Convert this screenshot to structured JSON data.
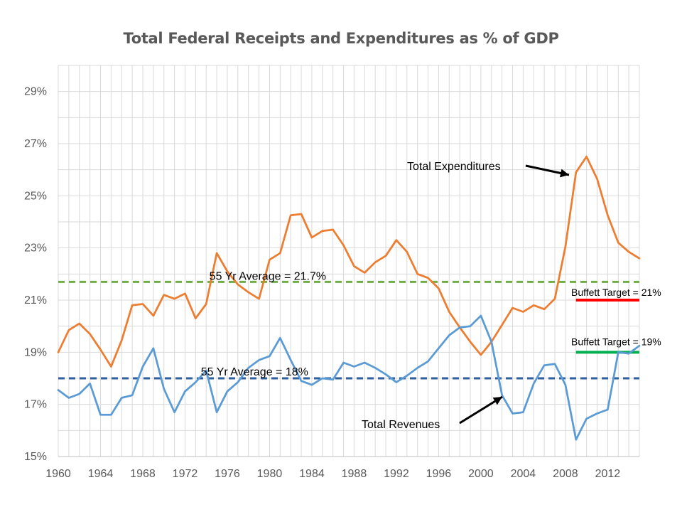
{
  "chart_data": {
    "type": "line",
    "title": "Total Federal Receipts and Expenditures as % of GDP",
    "xlabel": "",
    "ylabel": "",
    "xlim": [
      1960,
      2015
    ],
    "ylim": [
      15,
      30
    ],
    "grid": true,
    "x_ticks": [
      "1960",
      "1964",
      "1968",
      "1972",
      "1976",
      "1980",
      "1984",
      "1988",
      "1992",
      "1996",
      "2000",
      "2004",
      "2008",
      "2012"
    ],
    "y_ticks": [
      "15%",
      "17%",
      "19%",
      "21%",
      "23%",
      "25%",
      "27%",
      "29%"
    ],
    "x": [
      1960,
      1961,
      1962,
      1963,
      1964,
      1965,
      1966,
      1967,
      1968,
      1969,
      1970,
      1971,
      1972,
      1973,
      1974,
      1975,
      1976,
      1977,
      1978,
      1979,
      1980,
      1981,
      1982,
      1983,
      1984,
      1985,
      1986,
      1987,
      1988,
      1989,
      1990,
      1991,
      1992,
      1993,
      1994,
      1995,
      1996,
      1997,
      1998,
      1999,
      2000,
      2001,
      2002,
      2003,
      2004,
      2005,
      2006,
      2007,
      2008,
      2009,
      2010,
      2011,
      2012,
      2013,
      2014,
      2015
    ],
    "series": [
      {
        "name": "Total Expenditures",
        "color": "#ED7D31",
        "values": [
          19.0,
          19.85,
          20.1,
          19.7,
          19.1,
          18.45,
          19.45,
          20.8,
          20.85,
          20.4,
          21.2,
          21.05,
          21.25,
          20.3,
          20.85,
          22.8,
          22.1,
          21.6,
          21.3,
          21.05,
          22.55,
          22.8,
          24.25,
          24.3,
          23.4,
          23.65,
          23.7,
          23.1,
          22.3,
          22.05,
          22.45,
          22.7,
          23.3,
          22.85,
          22.0,
          21.85,
          21.45,
          20.55,
          19.95,
          19.4,
          18.9,
          19.4,
          20.05,
          20.7,
          20.55,
          20.8,
          20.65,
          21.05,
          23.05,
          25.9,
          26.5,
          25.65,
          24.25,
          23.2,
          22.85,
          22.6
        ]
      },
      {
        "name": "Total Revenues",
        "color": "#5B9BD5",
        "values": [
          17.55,
          17.25,
          17.4,
          17.8,
          16.6,
          16.6,
          17.25,
          17.35,
          18.45,
          19.15,
          17.6,
          16.7,
          17.5,
          17.85,
          18.3,
          16.7,
          17.5,
          17.85,
          18.4,
          18.7,
          18.85,
          19.55,
          18.7,
          17.9,
          17.75,
          18.0,
          17.95,
          18.6,
          18.45,
          18.6,
          18.4,
          18.15,
          17.85,
          18.1,
          18.4,
          18.65,
          19.15,
          19.65,
          19.95,
          20.0,
          20.4,
          19.4,
          17.35,
          16.65,
          16.7,
          17.8,
          18.5,
          18.55,
          17.75,
          15.65,
          16.45,
          16.65,
          16.8,
          19.0,
          18.95,
          19.25
        ]
      }
    ],
    "reference_lines": [
      {
        "label": "55 Yr Average  = 21.7%",
        "value": 21.7,
        "color": "#70AD47",
        "style": "dashed",
        "x_start": 1960,
        "x_end": 2015
      },
      {
        "label": "55 Yr Average  = 18%",
        "value": 18.0,
        "color": "#2E5F9E",
        "style": "dashed",
        "x_start": 1960,
        "x_end": 2015
      },
      {
        "label": "Buffett Target = 21%",
        "value": 21.0,
        "color": "#FF0000",
        "style": "solid",
        "x_start": 2009,
        "x_end": 2015
      },
      {
        "label": "Buffett Target = 19%",
        "value": 19.0,
        "color": "#00B050",
        "style": "solid",
        "x_start": 2009,
        "x_end": 2015
      }
    ],
    "annotations": [
      {
        "text": "Total Expenditures",
        "points_to": [
          2009,
          25.9
        ]
      },
      {
        "text": "Total Revenues",
        "points_to": [
          2002,
          17.35
        ]
      }
    ]
  }
}
